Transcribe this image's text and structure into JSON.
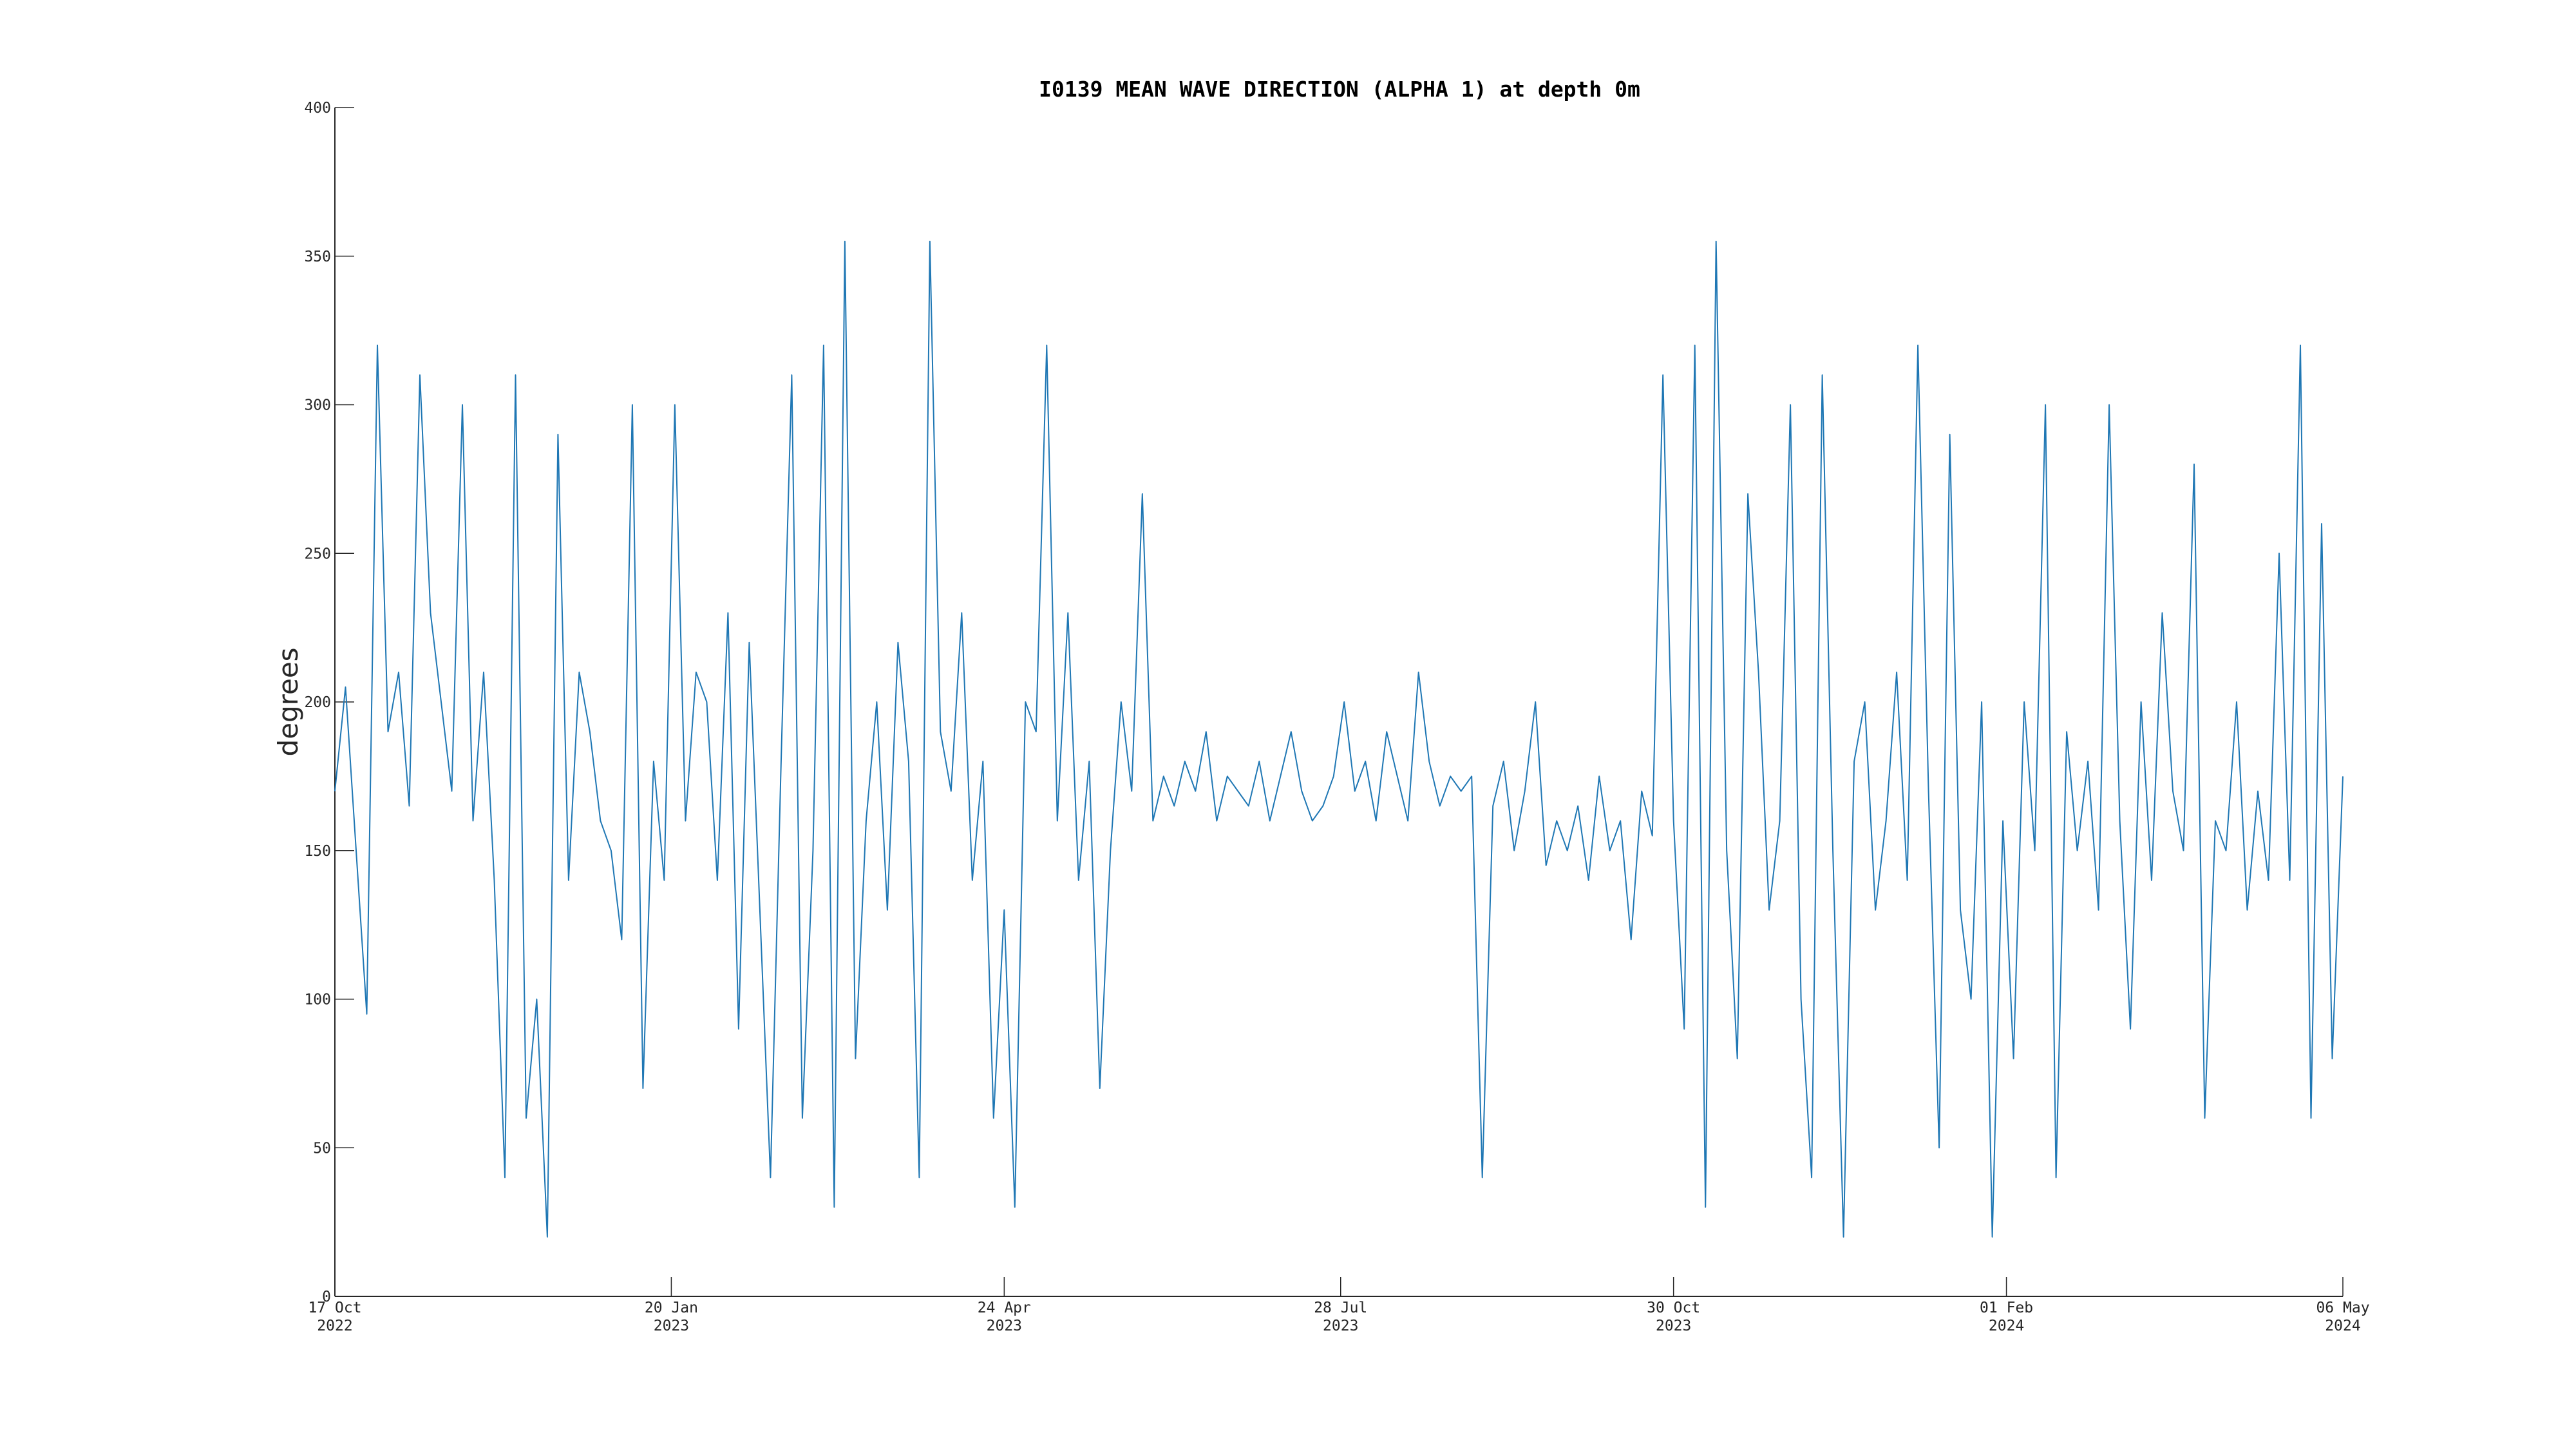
{
  "chart_data": {
    "type": "line",
    "title": "I0139 MEAN WAVE DIRECTION (ALPHA 1) at depth 0m",
    "y_label": "degrees",
    "color": "#1f77b4",
    "x": [
      "2022-10-17",
      "2022-10-20",
      "2022-10-23",
      "2022-10-26",
      "2022-10-29",
      "2022-11-01",
      "2022-11-04",
      "2022-11-07",
      "2022-11-10",
      "2022-11-13",
      "2022-11-16",
      "2022-11-19",
      "2022-11-22",
      "2022-11-25",
      "2022-11-28",
      "2022-12-01",
      "2022-12-04",
      "2022-12-07",
      "2022-12-10",
      "2022-12-13",
      "2022-12-16",
      "2022-12-19",
      "2022-12-22",
      "2022-12-25",
      "2022-12-28",
      "2022-12-31",
      "2023-01-03",
      "2023-01-06",
      "2023-01-09",
      "2023-01-12",
      "2023-01-15",
      "2023-01-18",
      "2023-01-21",
      "2023-01-24",
      "2023-01-27",
      "2023-01-30",
      "2023-02-02",
      "2023-02-05",
      "2023-02-08",
      "2023-02-11",
      "2023-02-14",
      "2023-02-17",
      "2023-02-20",
      "2023-02-23",
      "2023-02-26",
      "2023-03-01",
      "2023-03-04",
      "2023-03-07",
      "2023-03-10",
      "2023-03-13",
      "2023-03-16",
      "2023-03-19",
      "2023-03-22",
      "2023-03-25",
      "2023-03-28",
      "2023-03-31",
      "2023-04-03",
      "2023-04-06",
      "2023-04-09",
      "2023-04-12",
      "2023-04-15",
      "2023-04-18",
      "2023-04-21",
      "2023-04-24",
      "2023-04-27",
      "2023-04-30",
      "2023-05-03",
      "2023-05-06",
      "2023-05-09",
      "2023-05-12",
      "2023-05-15",
      "2023-05-18",
      "2023-05-21",
      "2023-05-24",
      "2023-05-27",
      "2023-05-30",
      "2023-06-02",
      "2023-06-05",
      "2023-06-08",
      "2023-06-11",
      "2023-06-14",
      "2023-06-17",
      "2023-06-20",
      "2023-06-23",
      "2023-06-26",
      "2023-06-29",
      "2023-07-02",
      "2023-07-05",
      "2023-07-08",
      "2023-07-11",
      "2023-07-14",
      "2023-07-17",
      "2023-07-20",
      "2023-07-23",
      "2023-07-26",
      "2023-07-29",
      "2023-08-01",
      "2023-08-04",
      "2023-08-07",
      "2023-08-10",
      "2023-08-13",
      "2023-08-16",
      "2023-08-19",
      "2023-08-22",
      "2023-08-25",
      "2023-08-28",
      "2023-08-31",
      "2023-09-03",
      "2023-09-06",
      "2023-09-09",
      "2023-09-12",
      "2023-09-15",
      "2023-09-18",
      "2023-09-21",
      "2023-09-24",
      "2023-09-27",
      "2023-09-30",
      "2023-10-03",
      "2023-10-06",
      "2023-10-09",
      "2023-10-12",
      "2023-10-15",
      "2023-10-18",
      "2023-10-21",
      "2023-10-24",
      "2023-10-27",
      "2023-10-30",
      "2023-11-02",
      "2023-11-05",
      "2023-11-08",
      "2023-11-11",
      "2023-11-14",
      "2023-11-17",
      "2023-11-20",
      "2023-11-23",
      "2023-11-26",
      "2023-11-29",
      "2023-12-02",
      "2023-12-05",
      "2023-12-08",
      "2023-12-11",
      "2023-12-14",
      "2023-12-17",
      "2023-12-20",
      "2023-12-23",
      "2023-12-26",
      "2023-12-29",
      "2024-01-01",
      "2024-01-04",
      "2024-01-07",
      "2024-01-10",
      "2024-01-13",
      "2024-01-16",
      "2024-01-19",
      "2024-01-22",
      "2024-01-25",
      "2024-01-28",
      "2024-01-31",
      "2024-02-03",
      "2024-02-06",
      "2024-02-09",
      "2024-02-12",
      "2024-02-15",
      "2024-02-18",
      "2024-02-21",
      "2024-02-24",
      "2024-02-27",
      "2024-03-01",
      "2024-03-04",
      "2024-03-07",
      "2024-03-10",
      "2024-03-13",
      "2024-03-16",
      "2024-03-19",
      "2024-03-22",
      "2024-03-25",
      "2024-03-28",
      "2024-03-31",
      "2024-04-03",
      "2024-04-06",
      "2024-04-09",
      "2024-04-12",
      "2024-04-15",
      "2024-04-18",
      "2024-04-21",
      "2024-04-24",
      "2024-04-27",
      "2024-04-30",
      "2024-05-03",
      "2024-05-06"
    ],
    "values": [
      170,
      205,
      150,
      95,
      320,
      190,
      210,
      165,
      310,
      230,
      200,
      170,
      300,
      160,
      210,
      140,
      40,
      310,
      60,
      100,
      20,
      290,
      140,
      210,
      190,
      160,
      150,
      120,
      300,
      70,
      180,
      140,
      300,
      160,
      210,
      200,
      140,
      230,
      90,
      220,
      130,
      40,
      180,
      310,
      60,
      150,
      320,
      30,
      355,
      80,
      160,
      200,
      130,
      220,
      180,
      40,
      355,
      190,
      170,
      230,
      140,
      180,
      60,
      130,
      30,
      200,
      190,
      320,
      160,
      230,
      140,
      180,
      70,
      150,
      200,
      170,
      270,
      160,
      175,
      165,
      180,
      170,
      190,
      160,
      175,
      170,
      165,
      180,
      160,
      175,
      190,
      170,
      160,
      165,
      175,
      200,
      170,
      180,
      160,
      190,
      175,
      160,
      210,
      180,
      165,
      175,
      170,
      175,
      40,
      165,
      180,
      150,
      170,
      200,
      145,
      160,
      150,
      165,
      140,
      175,
      150,
      160,
      120,
      170,
      155,
      310,
      160,
      90,
      320,
      30,
      355,
      150,
      80,
      270,
      210,
      130,
      160,
      300,
      100,
      40,
      310,
      150,
      20,
      180,
      200,
      130,
      160,
      210,
      140,
      320,
      170,
      50,
      290,
      130,
      100,
      200,
      20,
      160,
      80,
      200,
      150,
      300,
      40,
      190,
      150,
      180,
      130,
      300,
      160,
      90,
      200,
      140,
      230,
      170,
      150,
      280,
      60,
      160,
      150,
      200,
      130,
      170,
      140,
      250,
      140,
      320,
      60,
      260,
      80,
      175
    ],
    "xlim": [
      "2022-10-17",
      "2024-05-06"
    ],
    "xticks": [
      {
        "value": "2022-10-17",
        "label": [
          "17 Oct",
          "2022"
        ]
      },
      {
        "value": "2023-01-20",
        "label": [
          "20 Jan",
          "2023"
        ]
      },
      {
        "value": "2023-04-24",
        "label": [
          "24 Apr",
          "2023"
        ]
      },
      {
        "value": "2023-07-28",
        "label": [
          "28 Jul",
          "2023"
        ]
      },
      {
        "value": "2023-10-30",
        "label": [
          "30 Oct",
          "2023"
        ]
      },
      {
        "value": "2024-02-01",
        "label": [
          "01 Feb",
          "2024"
        ]
      },
      {
        "value": "2024-05-06",
        "label": [
          "06 May",
          "2024"
        ]
      }
    ],
    "ylim": [
      0,
      400
    ],
    "yticks": [
      0,
      50,
      100,
      150,
      200,
      250,
      300,
      350,
      400
    ],
    "grid": false
  }
}
